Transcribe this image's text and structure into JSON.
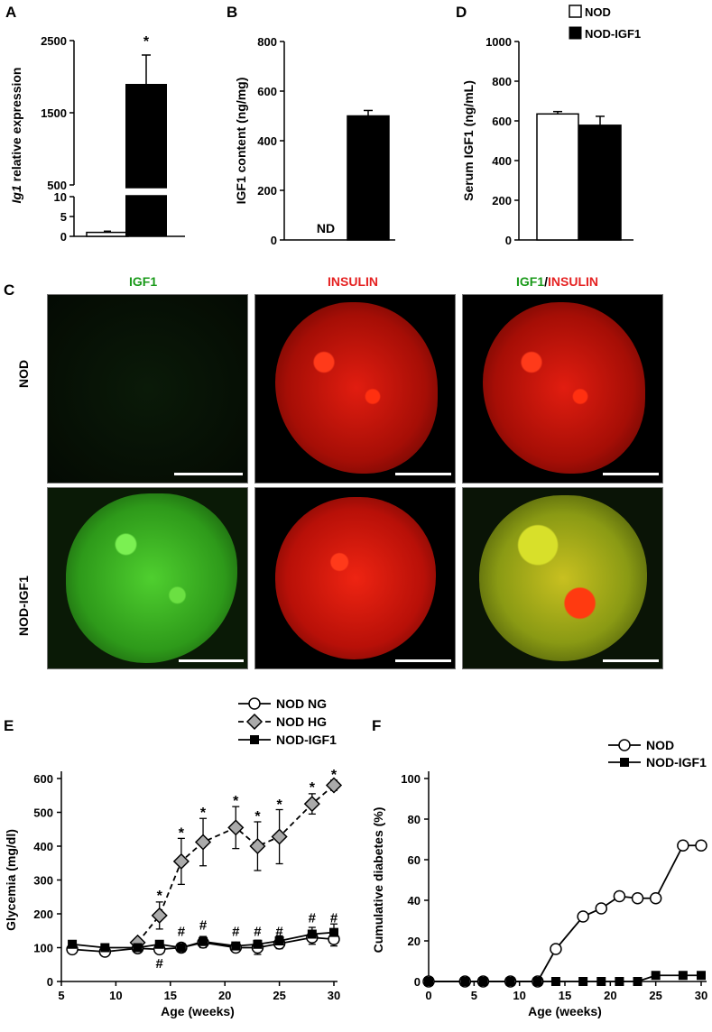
{
  "panels": {
    "A": "A",
    "B": "B",
    "C": "C",
    "D": "D",
    "E": "E",
    "F": "F"
  },
  "legend_top": {
    "nod": "NOD",
    "nod_igf1": "NOD-IGF1"
  },
  "microscopy": {
    "col_labels": {
      "igf1": "IGF1",
      "insulin": "INSULIN",
      "merge_a": "IGF1",
      "merge_sep": "/",
      "merge_b": "INSULIN"
    },
    "row_labels": {
      "nod": "NOD",
      "nod_igf1": "NOD-IGF1"
    }
  },
  "chart_data": [
    {
      "panel": "A",
      "type": "bar",
      "ylabel_italic": "Ig1",
      "ylabel_rest": " relative expression",
      "categories": [
        "NOD",
        "NOD-IGF1"
      ],
      "values": [
        1,
        1900
      ],
      "errors": [
        0.3,
        400
      ],
      "yticks_upper": [
        "500",
        "1500",
        "2500"
      ],
      "yticks_lower": [
        "0",
        "5",
        "10"
      ],
      "annotations": [
        "*"
      ],
      "ylim_lower": [
        0,
        10
      ],
      "ylim_upper": [
        500,
        2500
      ]
    },
    {
      "panel": "B",
      "type": "bar",
      "ylabel": "IGF1 content (ng/mg)",
      "categories": [
        "NOD",
        "NOD-IGF1"
      ],
      "values": [
        null,
        500
      ],
      "errors": [
        null,
        22
      ],
      "na_label": "ND",
      "yticks": [
        "0",
        "200",
        "400",
        "600",
        "800"
      ],
      "ylim": [
        0,
        800
      ]
    },
    {
      "panel": "D",
      "type": "bar",
      "ylabel": "Serum IGF1 (ng/mL)",
      "categories": [
        "NOD",
        "NOD-IGF1"
      ],
      "values": [
        635,
        578
      ],
      "errors": [
        12,
        45
      ],
      "yticks": [
        "0",
        "200",
        "400",
        "600",
        "800",
        "1000"
      ],
      "ylim": [
        0,
        1000
      ]
    },
    {
      "panel": "E",
      "type": "line",
      "xlabel": "Age (weeks)",
      "ylabel": "Glycemia (mg/dl)",
      "xticks": [
        "5",
        "10",
        "15",
        "20",
        "25",
        "30"
      ],
      "yticks": [
        "0",
        "100",
        "200",
        "300",
        "400",
        "500",
        "600"
      ],
      "xlim": [
        5,
        30
      ],
      "ylim": [
        0,
        600
      ],
      "x": [
        6,
        9,
        12,
        14,
        16,
        18,
        21,
        23,
        25,
        28,
        30
      ],
      "series": [
        {
          "name": "NOD NG",
          "marker": "circle",
          "values": [
            95,
            88,
            98,
            95,
            100,
            115,
            100,
            100,
            112,
            130,
            125
          ],
          "errors": [
            10,
            10,
            10,
            12,
            10,
            15,
            10,
            20,
            15,
            20,
            20
          ]
        },
        {
          "name": "NOD HG",
          "marker": "diamond",
          "values": [
            null,
            null,
            115,
            195,
            355,
            412,
            455,
            400,
            428,
            525,
            580
          ],
          "errors": [
            null,
            null,
            10,
            40,
            68,
            70,
            62,
            72,
            80,
            30,
            15
          ]
        },
        {
          "name": "NOD-IGF1",
          "marker": "square",
          "values": [
            110,
            100,
            100,
            110,
            100,
            118,
            105,
            110,
            120,
            140,
            145
          ],
          "errors": [
            10,
            10,
            10,
            10,
            10,
            15,
            10,
            12,
            15,
            20,
            25
          ]
        }
      ],
      "star_annotations": [
        {
          "x": 14,
          "y": 240,
          "text": "*"
        },
        {
          "x": 16,
          "y": 425,
          "text": "*"
        },
        {
          "x": 18,
          "y": 485,
          "text": "*"
        },
        {
          "x": 21,
          "y": 520,
          "text": "*"
        },
        {
          "x": 23,
          "y": 475,
          "text": "*"
        },
        {
          "x": 25,
          "y": 510,
          "text": "*"
        },
        {
          "x": 28,
          "y": 560,
          "text": "*"
        },
        {
          "x": 30,
          "y": 598,
          "text": "*"
        }
      ],
      "hash_annotations": [
        {
          "x": 14,
          "y": 40,
          "text": "#"
        },
        {
          "x": 16,
          "y": 135,
          "text": "#"
        },
        {
          "x": 18,
          "y": 153,
          "text": "#"
        },
        {
          "x": 21,
          "y": 135,
          "text": "#"
        },
        {
          "x": 23,
          "y": 135,
          "text": "#"
        },
        {
          "x": 25,
          "y": 135,
          "text": "#"
        },
        {
          "x": 28,
          "y": 175,
          "text": "#"
        },
        {
          "x": 30,
          "y": 175,
          "text": "#"
        }
      ]
    },
    {
      "panel": "F",
      "type": "line",
      "xlabel": "Age (weeks)",
      "ylabel": "Cumulative diabetes (%)",
      "xticks": [
        "0",
        "5",
        "10",
        "15",
        "20",
        "25",
        "30"
      ],
      "yticks": [
        "0",
        "20",
        "40",
        "60",
        "80",
        "100"
      ],
      "xlim": [
        0,
        30
      ],
      "ylim": [
        0,
        100
      ],
      "series": [
        {
          "name": "NOD",
          "marker": "circle",
          "x": [
            0,
            4,
            6,
            9,
            12,
            14,
            17,
            19,
            21,
            23,
            25,
            28,
            30
          ],
          "values": [
            0,
            0,
            0,
            0,
            0,
            16,
            32,
            36,
            42,
            41,
            41,
            67,
            67
          ]
        },
        {
          "name": "NOD-IGF1",
          "marker": "square",
          "x": [
            0,
            4,
            6,
            9,
            12,
            14,
            17,
            19,
            21,
            23,
            25,
            28,
            30
          ],
          "values": [
            0,
            0,
            0,
            0,
            0,
            0,
            0,
            0,
            0,
            0,
            3,
            3,
            3
          ]
        }
      ]
    }
  ]
}
